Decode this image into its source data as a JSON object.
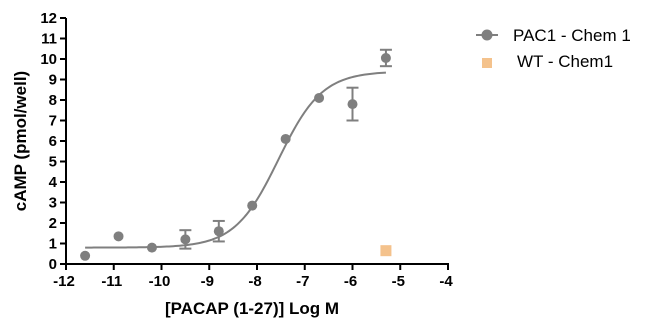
{
  "chart_data": {
    "type": "scatter",
    "xlabel": "[PACAP (1-27)] Log M",
    "ylabel": "cAMP (pmol/well)",
    "xlim": [
      -12,
      -4
    ],
    "ylim": [
      0,
      12
    ],
    "x_ticks": [
      -12,
      -11,
      -10,
      -9,
      -8,
      -7,
      -6,
      -5,
      -4
    ],
    "y_ticks": [
      0,
      1,
      2,
      3,
      4,
      5,
      6,
      7,
      8,
      9,
      10,
      11,
      12
    ],
    "x_tick_labels": [
      "-12",
      "-11",
      "-10",
      "-9",
      "-8",
      "-7",
      "-6",
      "-5",
      "-4"
    ],
    "y_tick_labels": [
      "0",
      "1",
      "2",
      "3",
      "4",
      "5",
      "6",
      "7",
      "8",
      "9",
      "10",
      "11",
      "12"
    ],
    "legend_position": "top-right",
    "grid": false,
    "series": [
      {
        "name": "PAC1 - Chem 1",
        "color": "#7f7f7f",
        "marker": "circle",
        "points": [
          {
            "x": -11.6,
            "y": 0.4,
            "err": 0
          },
          {
            "x": -10.9,
            "y": 1.35,
            "err": 0
          },
          {
            "x": -10.2,
            "y": 0.8,
            "err": 0
          },
          {
            "x": -9.5,
            "y": 1.2,
            "err": 0.45
          },
          {
            "x": -8.8,
            "y": 1.6,
            "err": 0.5
          },
          {
            "x": -8.1,
            "y": 2.85,
            "err": 0
          },
          {
            "x": -7.4,
            "y": 6.1,
            "err": 0
          },
          {
            "x": -6.7,
            "y": 8.1,
            "err": 0
          },
          {
            "x": -6.0,
            "y": 7.8,
            "err": 0.8
          },
          {
            "x": -5.3,
            "y": 10.05,
            "err": 0.4
          }
        ],
        "fit": {
          "model": "sigmoidal dose-response",
          "bottom": 0.8,
          "top": 9.4,
          "logEC50": -7.55,
          "hill": 0.95,
          "x_range": [
            -11.6,
            -5.3
          ]
        }
      },
      {
        "name": "WT - Chem1",
        "color": "#f4c28c",
        "marker": "square",
        "points": [
          {
            "x": -5.3,
            "y": 0.65,
            "err": 0
          }
        ]
      }
    ]
  }
}
